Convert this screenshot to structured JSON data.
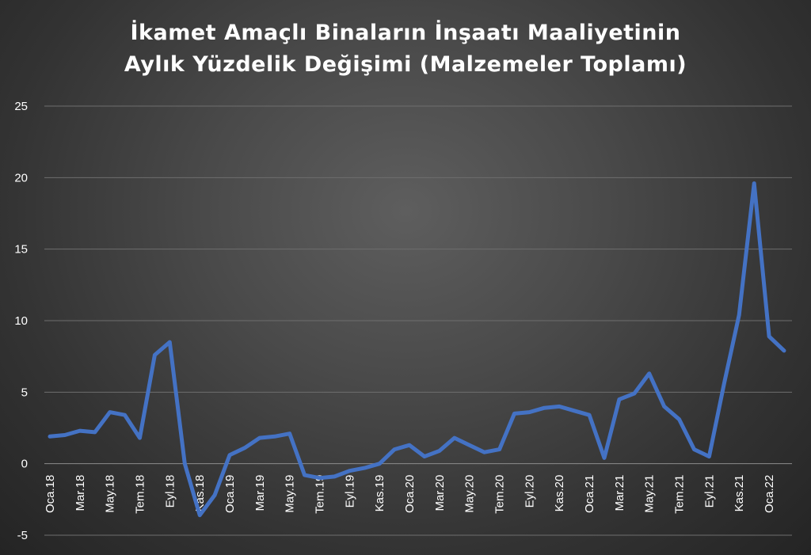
{
  "chart_data": {
    "type": "line",
    "title_line1": "İkamet Amaçlı Binaların İnşaatı Maaliyetinin",
    "title_line2": "Aylık Yüzdelik Değişimi (Malzemeler Toplamı)",
    "xlabel": "",
    "ylabel": "",
    "ylim": [
      -5,
      25
    ],
    "yticks": [
      -5,
      0,
      5,
      10,
      15,
      20,
      25
    ],
    "grid": true,
    "legend": "none",
    "line_color": "#4472C4",
    "categories": [
      "Oca.18",
      "Şub.18",
      "Mar.18",
      "Nis.18",
      "May.18",
      "Haz.18",
      "Tem.18",
      "Ağu.18",
      "Eyl.18",
      "Eki.18",
      "Kas.18",
      "Ara.18",
      "Oca.19",
      "Şub.19",
      "Mar.19",
      "Nis.19",
      "May.19",
      "Haz.19",
      "Tem.19",
      "Ağu.19",
      "Eyl.19",
      "Eki.19",
      "Kas.19",
      "Ara.19",
      "Oca.20",
      "Şub.20",
      "Mar.20",
      "Nis.20",
      "May.20",
      "Haz.20",
      "Tem.20",
      "Ağu.20",
      "Eyl.20",
      "Eki.20",
      "Kas.20",
      "Ara.20",
      "Oca.21",
      "Şub.21",
      "Mar.21",
      "Nis.21",
      "May.21",
      "Haz.21",
      "Tem.21",
      "Ağu.21",
      "Eyl.21",
      "Eki.21",
      "Kas.21",
      "Ara.21",
      "Oca.22",
      "Şub.22"
    ],
    "visible_labels": [
      "Oca.18",
      "Mar.18",
      "May.18",
      "Tem.18",
      "Eyl.18",
      "Kas.18",
      "Oca.19",
      "Mar.19",
      "May.19",
      "Tem.19",
      "Eyl.19",
      "Kas.19",
      "Oca.20",
      "Mar.20",
      "May.20",
      "Tem.20",
      "Eyl.20",
      "Kas.20",
      "Oca.21",
      "Mar.21",
      "May.21",
      "Tem.21",
      "Eyl.21",
      "Kas.21",
      "Oca.22"
    ],
    "values": [
      1.9,
      2.0,
      2.3,
      2.2,
      3.6,
      3.4,
      1.8,
      7.6,
      8.5,
      0.0,
      -3.6,
      -2.2,
      0.6,
      1.1,
      1.8,
      1.9,
      2.1,
      -0.8,
      -1.0,
      -0.9,
      -0.5,
      -0.3,
      0.0,
      1.0,
      1.3,
      0.5,
      0.9,
      1.8,
      1.3,
      0.8,
      1.0,
      3.5,
      3.6,
      3.9,
      4.0,
      3.7,
      3.4,
      0.4,
      4.5,
      4.9,
      6.3,
      4.0,
      3.1,
      1.0,
      0.5,
      5.6,
      10.4,
      19.6,
      8.9,
      7.9
    ]
  }
}
